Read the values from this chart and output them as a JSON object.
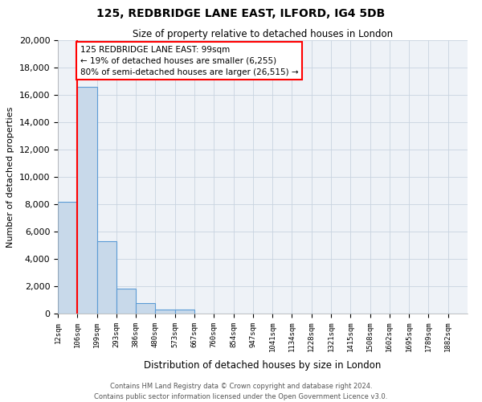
{
  "title": "125, REDBRIDGE LANE EAST, ILFORD, IG4 5DB",
  "subtitle": "Size of property relative to detached houses in London",
  "xlabel": "Distribution of detached houses by size in London",
  "ylabel": "Number of detached properties",
  "bin_labels": [
    "12sqm",
    "106sqm",
    "199sqm",
    "293sqm",
    "386sqm",
    "480sqm",
    "573sqm",
    "667sqm",
    "760sqm",
    "854sqm",
    "947sqm",
    "1041sqm",
    "1134sqm",
    "1228sqm",
    "1321sqm",
    "1415sqm",
    "1508sqm",
    "1602sqm",
    "1695sqm",
    "1789sqm",
    "1882sqm"
  ],
  "bar_heights": [
    8200,
    16600,
    5300,
    1850,
    780,
    280,
    280,
    0,
    0,
    0,
    0,
    0,
    0,
    0,
    0,
    0,
    0,
    0,
    0,
    0,
    0
  ],
  "ylim": [
    0,
    20000
  ],
  "yticks": [
    0,
    2000,
    4000,
    6000,
    8000,
    10000,
    12000,
    14000,
    16000,
    18000,
    20000
  ],
  "bar_color": "#c8d9ea",
  "bar_edge_color": "#5b9bd5",
  "red_line_x": 1.0,
  "annotation_title": "125 REDBRIDGE LANE EAST: 99sqm",
  "annotation_line1": "← 19% of detached houses are smaller (6,255)",
  "annotation_line2": "80% of semi-detached houses are larger (26,515) →",
  "footer1": "Contains HM Land Registry data © Crown copyright and database right 2024.",
  "footer2": "Contains public sector information licensed under the Open Government Licence v3.0.",
  "background_color": "#ffffff",
  "plot_bg_color": "#eef2f7",
  "grid_color": "#c8d4e0"
}
